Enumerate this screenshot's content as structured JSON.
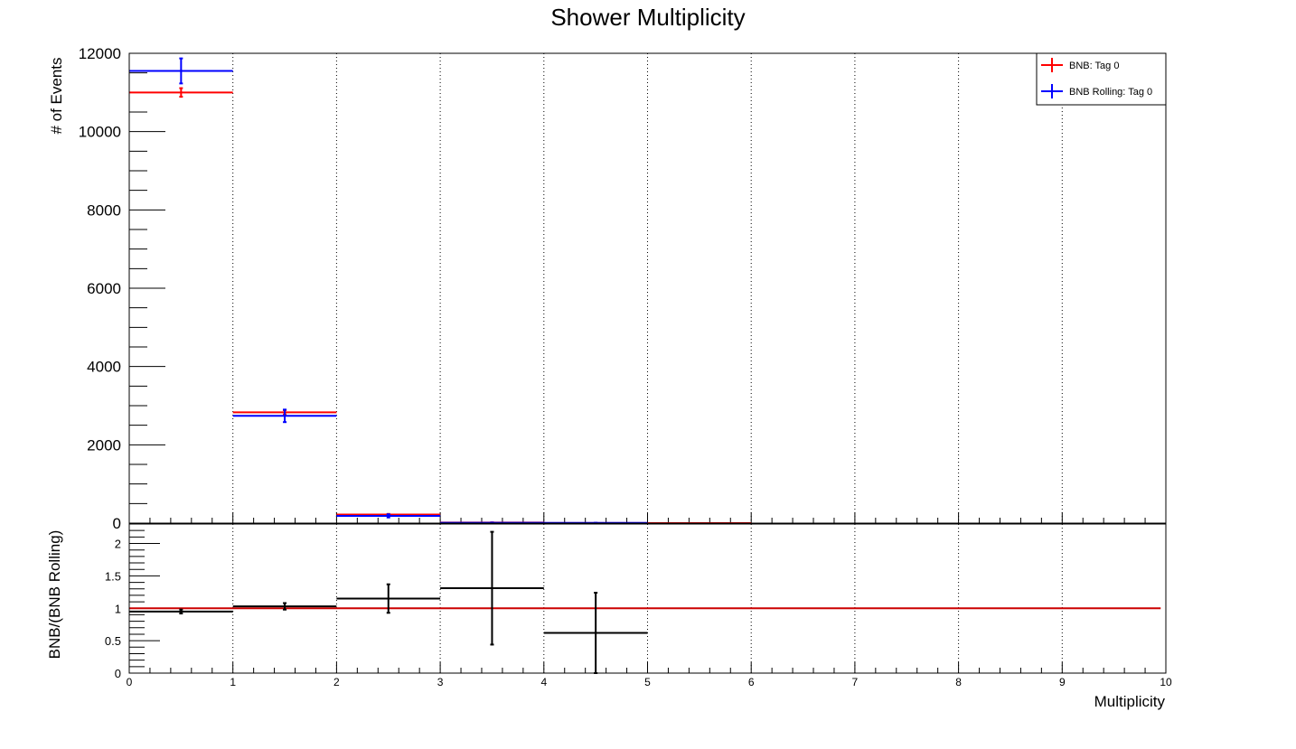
{
  "chart_data": [
    {
      "type": "line",
      "title": "Shower Multiplicity",
      "xlabel": "",
      "ylabel": "# of Events",
      "xlim": [
        0,
        10
      ],
      "ylim": [
        0,
        12000
      ],
      "y_ticks": [
        "0",
        "2000",
        "4000",
        "6000",
        "8000",
        "10000",
        "12000"
      ],
      "grid": "vertical dotted",
      "legend": "top-right",
      "series": [
        {
          "name": "BNB: Tag 0",
          "color": "#ff0000",
          "bins": [
            [
              0,
              1
            ],
            [
              1,
              2
            ],
            [
              2,
              3
            ],
            [
              3,
              4
            ],
            [
              4,
              5
            ],
            [
              5,
              6
            ]
          ],
          "values": [
            11000,
            2830,
            220,
            15,
            3,
            0
          ],
          "errors": [
            110,
            55,
            15,
            4,
            2,
            0
          ]
        },
        {
          "name": "BNB Rolling: Tag 0",
          "color": "#0000ff",
          "bins": [
            [
              0,
              1
            ],
            [
              1,
              2
            ],
            [
              2,
              3
            ],
            [
              3,
              4
            ],
            [
              4,
              5
            ]
          ],
          "values": [
            11550,
            2740,
            185,
            10,
            5
          ],
          "errors": [
            320,
            160,
            40,
            5,
            3
          ]
        }
      ]
    },
    {
      "type": "scatter",
      "xlabel": "Multiplicity",
      "ylabel": "BNB/(BNB Rolling)",
      "xlim": [
        0,
        10
      ],
      "ylim": [
        0,
        2.3
      ],
      "x_ticks": [
        "0",
        "1",
        "2",
        "3",
        "4",
        "5",
        "6",
        "7",
        "8",
        "9",
        "10"
      ],
      "y_ticks": [
        "0",
        "0.5",
        "1",
        "1.5",
        "2"
      ],
      "reference_line": {
        "y": 1,
        "color": "#cc0000"
      },
      "series": [
        {
          "name": "",
          "color": "#000000",
          "bins": [
            [
              0,
              1
            ],
            [
              1,
              2
            ],
            [
              2,
              3
            ],
            [
              3,
              4
            ],
            [
              4,
              5
            ]
          ],
          "values": [
            0.95,
            1.03,
            1.15,
            1.31,
            0.62
          ],
          "errors": [
            0.03,
            0.05,
            0.22,
            0.87,
            0.62
          ]
        }
      ]
    }
  ]
}
